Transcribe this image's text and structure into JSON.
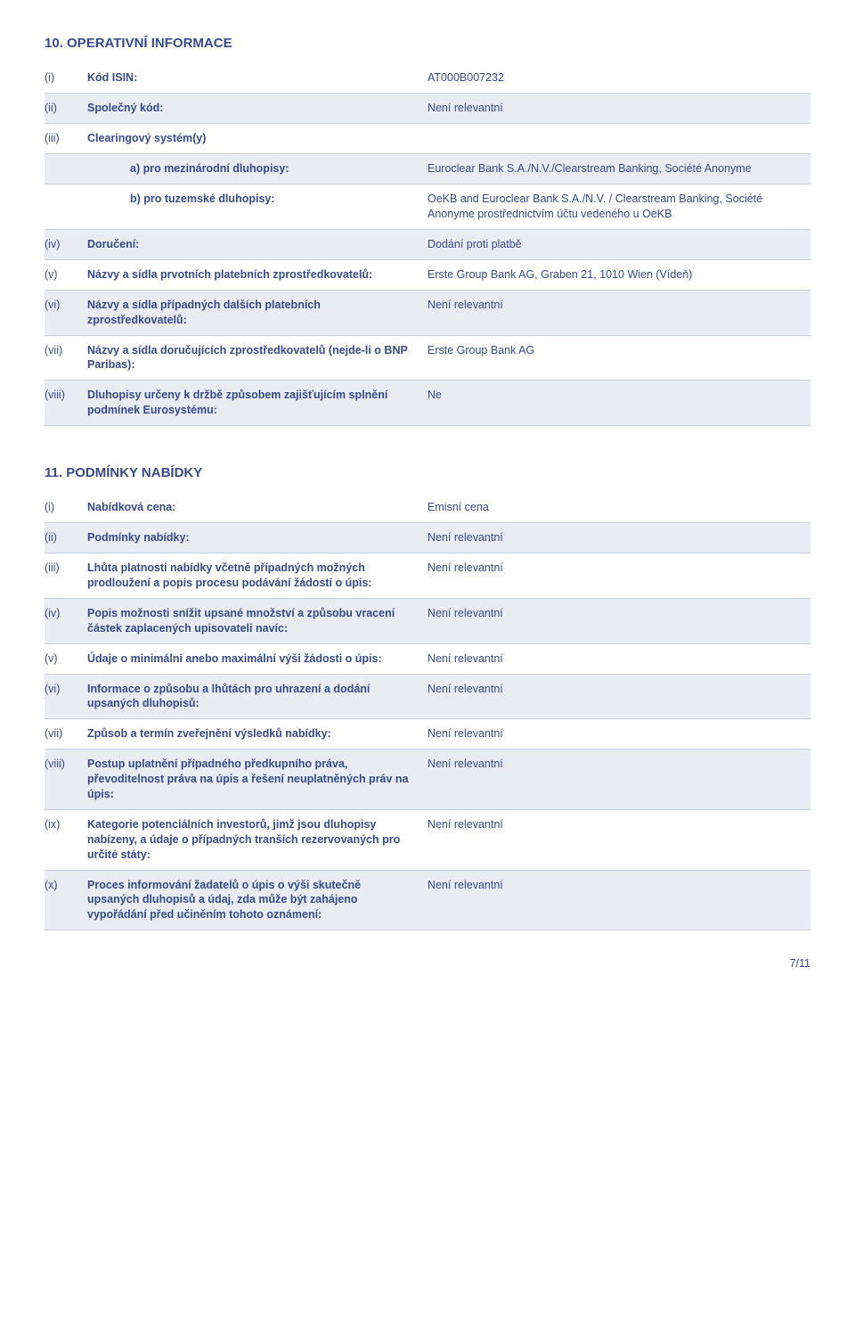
{
  "colors": {
    "text": "#374a8b",
    "band": "#e9ecf3",
    "border": "#c8cedb",
    "bg": "#ffffff"
  },
  "section10": {
    "title": "10. OPERATIVNÍ INFORMACE",
    "rows": [
      {
        "num": "(i)",
        "label": "Kód ISIN:",
        "val": "AT000B007232",
        "band": false
      },
      {
        "num": "(ii)",
        "label": "Společný kód:",
        "val": "Není relevantní",
        "band": true
      },
      {
        "num": "(iii)",
        "label": "Clearingový systém(y)",
        "val": "",
        "band": false
      },
      {
        "num": "",
        "label": "a) pro mezinárodní dluhopisy:",
        "val": "Euroclear Bank S.A./N.V./Clearstream Banking, Société Anonyme",
        "band": true,
        "indent": true
      },
      {
        "num": "",
        "label": "b) pro tuzemské dluhopisy:",
        "val": "OeKB and Euroclear Bank S.A./N.V. / Clearstream Banking, Société Anonyme prostřednictvím účtu vedeného u OeKB",
        "band": false,
        "indent": true
      },
      {
        "num": "(iv)",
        "label": "Doručení:",
        "val": "Dodání proti platbě",
        "band": true
      },
      {
        "num": "(v)",
        "label": "Názvy a sídla prvotních platebních zprostředkovatelů:",
        "val": "Erste Group Bank AG, Graben 21, 1010 Wien (Vídeň)",
        "band": false
      },
      {
        "num": "(vi)",
        "label": "Názvy a sídla případných dalších platebních zprostředkovatelů:",
        "val": "Není relevantní",
        "band": true
      },
      {
        "num": "(vii)",
        "label": "Názvy a sídla doručujících zprostředkovatelů (nejde-li o BNP Paribas):",
        "val": "Erste Group Bank AG",
        "band": false
      },
      {
        "num": "(viii)",
        "label": "Dluhopisy určeny k držbě způsobem zajišťujícím splnění podmínek Eurosystému:",
        "val": "Ne",
        "band": true
      }
    ]
  },
  "section11": {
    "title": "11. PODMÍNKY NABÍDKY",
    "rows": [
      {
        "num": "(i)",
        "label": "Nabídková cena:",
        "val": "Emisní cena",
        "band": false
      },
      {
        "num": "(ii)",
        "label": "Podmínky nabídky:",
        "val": "Není relevantní",
        "band": true
      },
      {
        "num": "(iii)",
        "label": "Lhůta platnosti nabídky včetně případných možných prodloužení a popis procesu podávání žádostí o úpis:",
        "val": "Není relevantní",
        "band": false
      },
      {
        "num": "(iv)",
        "label": "Popis možnosti snížit upsané množství a způsobu vracení částek zaplacených upisovateli navíc:",
        "val": "Není relevantní",
        "band": true
      },
      {
        "num": "(v)",
        "label": "Údaje o minimální anebo maximální výši žádosti o úpis:",
        "val": "Není relevantní",
        "band": false
      },
      {
        "num": "(vi)",
        "label": "Informace o způsobu a lhůtách pro uhrazení a dodání upsaných dluhopisů:",
        "val": "Není relevantní",
        "band": true
      },
      {
        "num": "(vii)",
        "label": "Způsob a termín zveřejnění výsledků nabídky:",
        "val": "Není relevantní",
        "band": false
      },
      {
        "num": "(viii)",
        "label": "Postup uplatnění případného předkupního práva, převoditelnost práva na úpis a řešení neuplatněných práv na úpis:",
        "val": "Není relevantní",
        "band": true
      },
      {
        "num": "(ix)",
        "label": "Kategorie potenciálních investorů, jimž jsou dluhopisy nabízeny, a údaje o případných tranších rezervovaných pro určité státy:",
        "val": "Není relevantní",
        "band": false
      },
      {
        "num": "(x)",
        "label": "Proces informování žadatelů o úpis o výši skutečně upsaných dluhopisů a údaj, zda může být zahájeno vypořádání před učiněním tohoto oznámení:",
        "val": "Není relevantní",
        "band": true
      }
    ]
  },
  "pageNumber": "7/11"
}
